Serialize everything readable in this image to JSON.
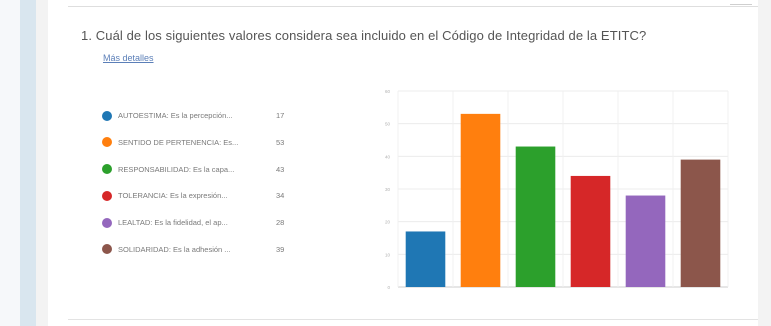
{
  "question": {
    "text": "1.  Cuál de los siguientes valores considera sea incluido en el Código de Integridad de la ETITC?",
    "more_link": "Más detalles"
  },
  "chart_data": {
    "type": "bar",
    "categories": [
      "AUTOESTIMA: Es la percepción...",
      "SENTIDO DE PERTENENCIA: Es...",
      "RESPONSABILIDAD: Es la capa...",
      "TOLERANCIA: Es la expresión...",
      "LEALTAD: Es la fidelidad, el ap...",
      "SOLIDARIDAD: Es la adhesión ..."
    ],
    "values": [
      17,
      53,
      43,
      34,
      28,
      39
    ],
    "colors": [
      "#1f77b4",
      "#ff7f0e",
      "#2ca02c",
      "#d62728",
      "#9467bd",
      "#8c564b"
    ],
    "ylim": [
      0,
      60
    ],
    "yticks": [
      0,
      10,
      20,
      30,
      40,
      50,
      60
    ],
    "grid": true,
    "legend": "left",
    "title": "",
    "xlabel": "",
    "ylabel": ""
  }
}
